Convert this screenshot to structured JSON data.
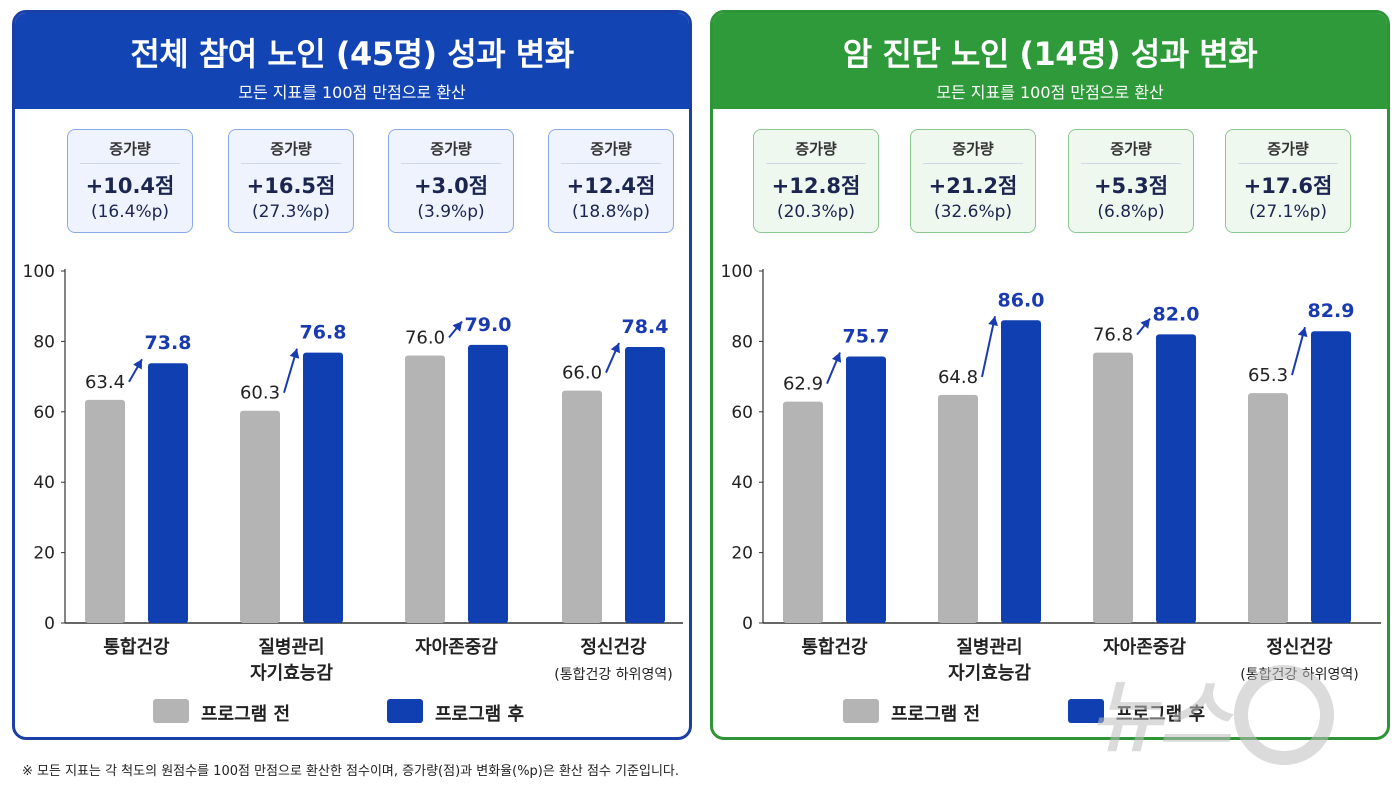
{
  "panels": [
    {
      "title": "전체 참여 노인 (45명) 성과 변화",
      "subtitle": "모든 지표를 100점 만점으로 환산",
      "increase_label": "증가량",
      "increases": [
        {
          "points": "+10.4점",
          "rate": "(16.4%p)"
        },
        {
          "points": "+16.5점",
          "rate": "(27.3%p)"
        },
        {
          "points": "+3.0점",
          "rate": "(3.9%p)"
        },
        {
          "points": "+12.4점",
          "rate": "(18.8%p)"
        }
      ],
      "legend": {
        "before": "프로그램 전",
        "after": "프로그램 후"
      }
    },
    {
      "title": "암 진단 노인 (14명) 성과 변화",
      "subtitle": "모든 지표를 100점 만점으로 환산",
      "increase_label": "증가량",
      "increases": [
        {
          "points": "+12.8점",
          "rate": "(20.3%p)"
        },
        {
          "points": "+21.2점",
          "rate": "(32.6%p)"
        },
        {
          "points": "+5.3점",
          "rate": "(6.8%p)"
        },
        {
          "points": "+17.6점",
          "rate": "(27.1%p)"
        }
      ],
      "legend": {
        "before": "프로그램 전",
        "after": "프로그램 후"
      }
    }
  ],
  "colors": {
    "before": "#b4b4b4",
    "after": "#0f3fb0",
    "blue_header": "#1244b3",
    "green_header": "#2e9a3a",
    "after_label": "#1a3ab0"
  },
  "chart_data": [
    {
      "type": "bar",
      "categories": [
        [
          "통합건강"
        ],
        [
          "질병관리",
          "자기효능감"
        ],
        [
          "자아존중감"
        ],
        [
          "정신건강",
          "(통합건강 하위영역)"
        ]
      ],
      "series": [
        {
          "name": "프로그램 전",
          "values": [
            63.4,
            60.3,
            76.0,
            66.0
          ]
        },
        {
          "name": "프로그램 후",
          "values": [
            73.8,
            76.8,
            79.0,
            78.4
          ]
        }
      ],
      "ylim": [
        0,
        100
      ],
      "yticks": [
        0,
        20,
        40,
        60,
        80,
        100
      ],
      "grid": false,
      "legend": "bottom"
    },
    {
      "type": "bar",
      "categories": [
        [
          "통합건강"
        ],
        [
          "질병관리",
          "자기효능감"
        ],
        [
          "자아존중감"
        ],
        [
          "정신건강",
          "(통합건강 하위영역)"
        ]
      ],
      "series": [
        {
          "name": "프로그램 전",
          "values": [
            62.9,
            64.8,
            76.8,
            65.3
          ]
        },
        {
          "name": "프로그램 후",
          "values": [
            75.7,
            86.0,
            82.0,
            82.9
          ]
        }
      ],
      "ylim": [
        0,
        100
      ],
      "yticks": [
        0,
        20,
        40,
        60,
        80,
        100
      ],
      "grid": false,
      "legend": "bottom"
    }
  ],
  "footnote": "※ 모든 지표는 각 척도의 원점수를 100점 만점으로 환산한 점수이며, 증가량(점)과 변화율(%p)은 환산 점수 기준입니다.",
  "watermark": "뉴스1"
}
